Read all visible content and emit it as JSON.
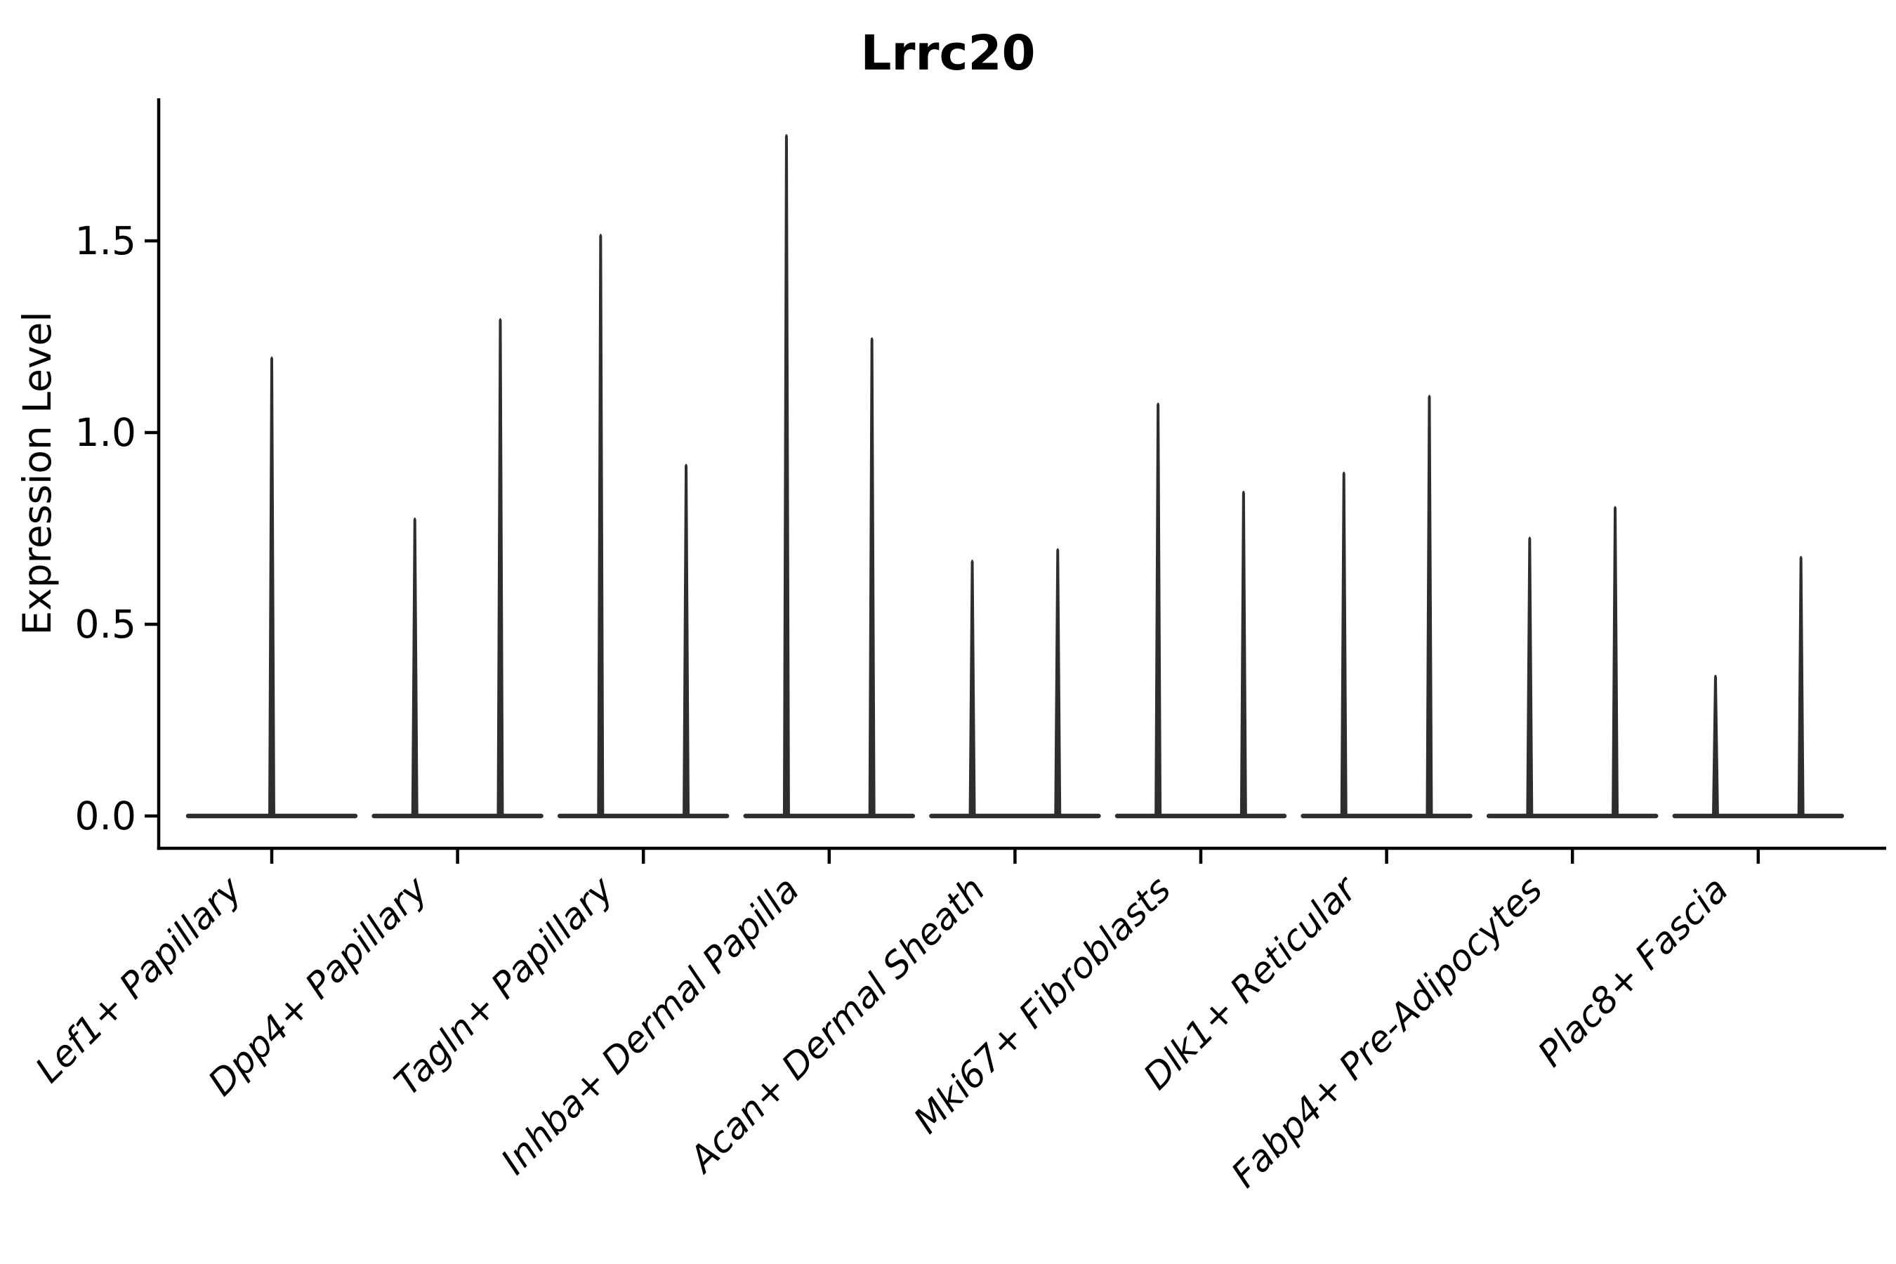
{
  "title": "Lrrc20",
  "y_axis": {
    "label": "Expression Level",
    "tick_labels": [
      "0.0",
      "0.5",
      "1.0",
      "1.5"
    ],
    "tick_values": [
      0.0,
      0.5,
      1.0,
      1.5
    ]
  },
  "chart_data": {
    "type": "violin",
    "title": "Lrrc20",
    "xlabel": "",
    "ylabel": "Expression Level",
    "ylim": [
      -0.08,
      1.87
    ],
    "grid": false,
    "legend": "none",
    "style": {
      "violin_color": "#2e2e2e",
      "axis_color": "#000000",
      "background": "#ffffff"
    },
    "categories": [
      "Lef1+ Papillary",
      "Dpp4+ Papillary",
      "Tagln+ Papillary",
      "Inhba+ Dermal Papilla",
      "Acan+ Dermal Sheath",
      "Mki67+ Fibroblasts",
      "Dlk1+ Reticular",
      "Fabp4+ Pre-Adipocytes",
      "Plac8+ Fascia"
    ],
    "violins": [
      {
        "category": "Lef1+ Papillary",
        "spikes": [
          {
            "offset": 0.0,
            "max": 1.2
          }
        ]
      },
      {
        "category": "Dpp4+ Papillary",
        "spikes": [
          {
            "offset": -0.23,
            "max": 0.78
          },
          {
            "offset": 0.23,
            "max": 1.3
          }
        ]
      },
      {
        "category": "Tagln+ Papillary",
        "spikes": [
          {
            "offset": -0.23,
            "max": 1.52
          },
          {
            "offset": 0.23,
            "max": 0.92
          }
        ]
      },
      {
        "category": "Inhba+ Dermal Papilla",
        "spikes": [
          {
            "offset": -0.23,
            "max": 1.78
          },
          {
            "offset": 0.23,
            "max": 1.25
          }
        ]
      },
      {
        "category": "Acan+ Dermal Sheath",
        "spikes": [
          {
            "offset": -0.23,
            "max": 0.67
          },
          {
            "offset": 0.23,
            "max": 0.7
          }
        ]
      },
      {
        "category": "Mki67+ Fibroblasts",
        "spikes": [
          {
            "offset": -0.23,
            "max": 1.08
          },
          {
            "offset": 0.23,
            "max": 0.85
          }
        ]
      },
      {
        "category": "Dlk1+ Reticular",
        "spikes": [
          {
            "offset": -0.23,
            "max": 0.9
          },
          {
            "offset": 0.23,
            "max": 1.1
          }
        ]
      },
      {
        "category": "Fabp4+ Pre-Adipocytes",
        "spikes": [
          {
            "offset": -0.23,
            "max": 0.73
          },
          {
            "offset": 0.23,
            "max": 0.81
          }
        ]
      },
      {
        "category": "Plac8+ Fascia",
        "spikes": [
          {
            "offset": -0.23,
            "max": 0.37
          },
          {
            "offset": 0.23,
            "max": 0.68
          }
        ]
      }
    ],
    "violin_base_value": 0.0,
    "violin_full_width_categories": 0.93
  }
}
